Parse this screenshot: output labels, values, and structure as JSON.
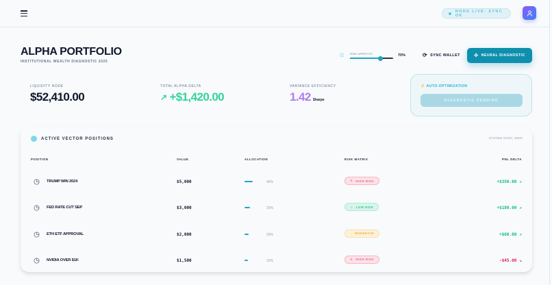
{
  "header": {
    "menu_icon": "hamburger-icon",
    "node_status": "NODE LIVE: SYNC OK",
    "avatar_icon": "user-icon"
  },
  "page": {
    "title": "ALPHA PORTFOLIO",
    "subtitle": "INSTITUTIONAL WEALTH DIAGNOSTIC 2025"
  },
  "controls": {
    "risk_label": "RISK APPETITE",
    "risk_value": 70,
    "risk_value_text": "70%",
    "sync_label": "SYNC WALLET",
    "neural_label": "NEURAL DIAGNOSTIC"
  },
  "stats": [
    {
      "label": "LIQUIDITY NODE",
      "value": "$52,410.00"
    },
    {
      "label": "TOTAL ALPHA DELTA",
      "value": "+$1,420.00"
    },
    {
      "label": "VARIANCE EFFICIENCY",
      "value": "1.42",
      "unit": "Sharpe"
    }
  ],
  "auto": {
    "title": "AUTO-OPTIMIZATION",
    "button": "DIAGNOSTIC PENDING"
  },
  "positions": {
    "title": "ACTIVE VECTOR POSITIONS",
    "system_sync": "SYSTEM SYNC: 100%",
    "columns": [
      "POSITION",
      "VALUE",
      "ALLOCATION",
      "RISK MATRIX",
      "PNL DELTA"
    ],
    "rows": [
      {
        "name": "TRUMP WIN 2024",
        "value": "$5,000",
        "allocation": 40,
        "allocation_text": "40%",
        "risk": "HIGH RISK",
        "pnl": "+$350.00",
        "arrow": "↗"
      },
      {
        "name": "FED RATE CUT SEP",
        "value": "$3,000",
        "allocation": 25,
        "allocation_text": "25%",
        "risk": "LOW RISK",
        "pnl": "+$180.00",
        "arrow": "↗"
      },
      {
        "name": "ETH ETF APPROVAL",
        "value": "$2,000",
        "allocation": 20,
        "allocation_text": "20%",
        "risk": "MODERATE",
        "pnl": "+$60.00",
        "arrow": "↗"
      },
      {
        "name": "NVIDIA OVER $1K",
        "value": "$1,500",
        "allocation": 15,
        "allocation_text": "15%",
        "risk": "HIGH RISK",
        "pnl": "-$45.00",
        "arrow": "↘"
      }
    ]
  },
  "colors": {
    "accent": "#0e8fae",
    "positive": "#10b981",
    "negative": "#e11d48",
    "purple": "#a855f7",
    "high": "#fde2e8",
    "low": "#d7f5ea",
    "moderate": "#fdf1d8"
  }
}
